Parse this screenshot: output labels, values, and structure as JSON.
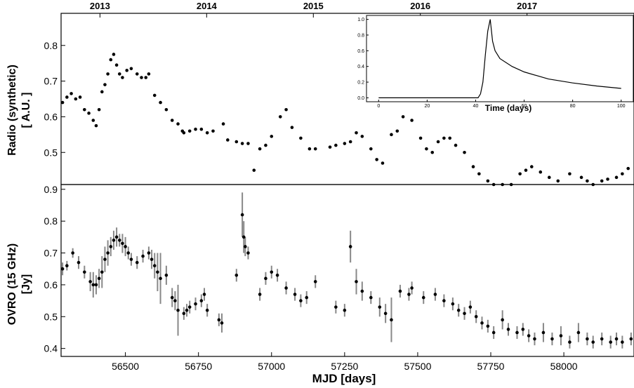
{
  "chart_data": [
    {
      "type": "scatter",
      "panel": "top",
      "ylabel": "Radio (synthetic)",
      "ylabel_unit": "[ A.U. ]",
      "xlim": [
        56280,
        58240
      ],
      "ylim": [
        0.41,
        0.89
      ],
      "yticks": [
        0.5,
        0.6,
        0.7,
        0.8
      ],
      "top_axis_years": [
        "2013",
        "2014",
        "2015",
        "2016",
        "2017"
      ],
      "top_axis_year_mjd": [
        56413,
        56778,
        57143,
        57509,
        57874
      ],
      "series": [
        {
          "name": "",
          "x": [
            56285,
            56300,
            56315,
            56330,
            56345,
            56360,
            56375,
            56390,
            56400,
            56410,
            56420,
            56430,
            56440,
            56450,
            56460,
            56470,
            56480,
            56490,
            56505,
            56520,
            56540,
            56555,
            56570,
            56580,
            56600,
            56620,
            56640,
            56660,
            56680,
            56695,
            56700,
            56720,
            56740,
            56760,
            56780,
            56800,
            56835,
            56850,
            56880,
            56900,
            56920,
            56940,
            56960,
            56980,
            57000,
            57030,
            57050,
            57070,
            57100,
            57130,
            57150,
            57200,
            57220,
            57250,
            57270,
            57290,
            57310,
            57340,
            57360,
            57380,
            57410,
            57430,
            57450,
            57480,
            57510,
            57530,
            57550,
            57570,
            57590,
            57610,
            57630,
            57660,
            57690,
            57710,
            57740,
            57760,
            57790,
            57820,
            57850,
            57870,
            57890,
            57920,
            57950,
            57980,
            58020,
            58060,
            58080,
            58100,
            58130,
            58150,
            58180,
            58200,
            58220
          ],
          "y": [
            0.64,
            0.655,
            0.665,
            0.65,
            0.655,
            0.62,
            0.61,
            0.59,
            0.575,
            0.62,
            0.67,
            0.69,
            0.72,
            0.76,
            0.775,
            0.745,
            0.72,
            0.71,
            0.73,
            0.735,
            0.72,
            0.71,
            0.71,
            0.72,
            0.66,
            0.64,
            0.62,
            0.59,
            0.58,
            0.56,
            0.555,
            0.56,
            0.565,
            0.565,
            0.555,
            0.56,
            0.58,
            0.535,
            0.53,
            0.525,
            0.525,
            0.45,
            0.51,
            0.52,
            0.545,
            0.6,
            0.62,
            0.57,
            0.54,
            0.51,
            0.51,
            0.515,
            0.52,
            0.525,
            0.53,
            0.555,
            0.545,
            0.51,
            0.48,
            0.47,
            0.55,
            0.56,
            0.6,
            0.59,
            0.54,
            0.51,
            0.5,
            0.53,
            0.54,
            0.54,
            0.52,
            0.5,
            0.46,
            0.44,
            0.42,
            0.41,
            0.41,
            0.41,
            0.44,
            0.45,
            0.46,
            0.445,
            0.43,
            0.42,
            0.44,
            0.43,
            0.42,
            0.41,
            0.42,
            0.425,
            0.43,
            0.44,
            0.455
          ]
        }
      ]
    },
    {
      "type": "scatter",
      "panel": "bottom",
      "ylabel": "OVRO (15 GHz)",
      "ylabel_unit": "[Jy]",
      "xlabel": "MJD [days]",
      "xlim": [
        56280,
        58240
      ],
      "ylim": [
        0.375,
        0.915
      ],
      "xticks": [
        56500,
        56750,
        57000,
        57250,
        57500,
        57750,
        58000
      ],
      "yticks": [
        0.4,
        0.5,
        0.6,
        0.7,
        0.8,
        0.9
      ],
      "error_bars": true,
      "series": [
        {
          "name": "",
          "x": [
            56285,
            56300,
            56320,
            56340,
            56360,
            56380,
            56390,
            56400,
            56410,
            56420,
            56430,
            56440,
            56450,
            56460,
            56470,
            56480,
            56490,
            56500,
            56510,
            56520,
            56540,
            56560,
            56580,
            56590,
            56600,
            56610,
            56620,
            56640,
            56660,
            56670,
            56680,
            56700,
            56710,
            56720,
            56740,
            56760,
            56770,
            56780,
            56820,
            56830,
            56880,
            56900,
            56905,
            56910,
            56920,
            56960,
            56980,
            57000,
            57020,
            57050,
            57080,
            57100,
            57120,
            57150,
            57220,
            57250,
            57270,
            57290,
            57310,
            57340,
            57370,
            57390,
            57410,
            57440,
            57470,
            57480,
            57520,
            57560,
            57590,
            57620,
            57640,
            57660,
            57680,
            57700,
            57720,
            57740,
            57760,
            57790,
            57810,
            57840,
            57860,
            57880,
            57900,
            57930,
            57960,
            57990,
            58020,
            58050,
            58080,
            58100,
            58130,
            58160,
            58180,
            58200,
            58230
          ],
          "y": [
            0.65,
            0.66,
            0.7,
            0.67,
            0.64,
            0.61,
            0.6,
            0.6,
            0.62,
            0.64,
            0.68,
            0.7,
            0.72,
            0.74,
            0.75,
            0.74,
            0.73,
            0.72,
            0.7,
            0.68,
            0.67,
            0.69,
            0.7,
            0.68,
            0.66,
            0.64,
            0.62,
            0.63,
            0.56,
            0.55,
            0.52,
            0.51,
            0.52,
            0.53,
            0.54,
            0.55,
            0.57,
            0.52,
            0.49,
            0.48,
            0.63,
            0.82,
            0.75,
            0.72,
            0.7,
            0.57,
            0.62,
            0.64,
            0.63,
            0.59,
            0.57,
            0.55,
            0.56,
            0.61,
            0.53,
            0.52,
            0.72,
            0.61,
            0.58,
            0.56,
            0.53,
            0.51,
            0.49,
            0.58,
            0.57,
            0.59,
            0.56,
            0.57,
            0.55,
            0.54,
            0.52,
            0.51,
            0.53,
            0.5,
            0.48,
            0.47,
            0.45,
            0.49,
            0.46,
            0.45,
            0.46,
            0.44,
            0.43,
            0.45,
            0.43,
            0.44,
            0.42,
            0.45,
            0.43,
            0.42,
            0.43,
            0.42,
            0.43,
            0.42,
            0.43
          ],
          "err": [
            0.02,
            0.015,
            0.015,
            0.02,
            0.02,
            0.03,
            0.04,
            0.03,
            0.03,
            0.05,
            0.04,
            0.04,
            0.03,
            0.03,
            0.03,
            0.02,
            0.03,
            0.03,
            0.02,
            0.02,
            0.02,
            0.02,
            0.02,
            0.03,
            0.04,
            0.06,
            0.08,
            0.03,
            0.03,
            0.03,
            0.08,
            0.02,
            0.02,
            0.02,
            0.02,
            0.02,
            0.02,
            0.02,
            0.02,
            0.03,
            0.02,
            0.07,
            0.05,
            0.03,
            0.02,
            0.02,
            0.02,
            0.02,
            0.02,
            0.02,
            0.02,
            0.02,
            0.02,
            0.02,
            0.02,
            0.02,
            0.05,
            0.04,
            0.03,
            0.02,
            0.03,
            0.03,
            0.07,
            0.02,
            0.02,
            0.02,
            0.02,
            0.02,
            0.02,
            0.02,
            0.02,
            0.02,
            0.02,
            0.02,
            0.02,
            0.02,
            0.02,
            0.03,
            0.02,
            0.02,
            0.02,
            0.02,
            0.02,
            0.03,
            0.02,
            0.03,
            0.02,
            0.03,
            0.02,
            0.02,
            0.02,
            0.02,
            0.02,
            0.02,
            0.02
          ]
        }
      ]
    },
    {
      "type": "line",
      "panel": "inset",
      "xlabel": "Time (days)",
      "xlim": [
        -5,
        105
      ],
      "ylim": [
        -0.05,
        1.05
      ],
      "xticks": [
        0,
        20,
        40,
        60,
        80,
        100
      ],
      "yticks": [
        0.0,
        0.2,
        0.4,
        0.6,
        0.8,
        1.0
      ],
      "ytick_labels": [
        "0.0",
        "0.2",
        "0.4",
        "0.6",
        "0.8",
        "1.0"
      ],
      "series": [
        {
          "name": "",
          "x": [
            0,
            41,
            42,
            43,
            44,
            45,
            46,
            47,
            48,
            50,
            55,
            60,
            70,
            80,
            90,
            100
          ],
          "y": [
            0.0,
            0.0,
            0.05,
            0.2,
            0.55,
            0.85,
            1.0,
            0.72,
            0.6,
            0.5,
            0.4,
            0.33,
            0.24,
            0.19,
            0.15,
            0.12
          ]
        }
      ]
    }
  ]
}
